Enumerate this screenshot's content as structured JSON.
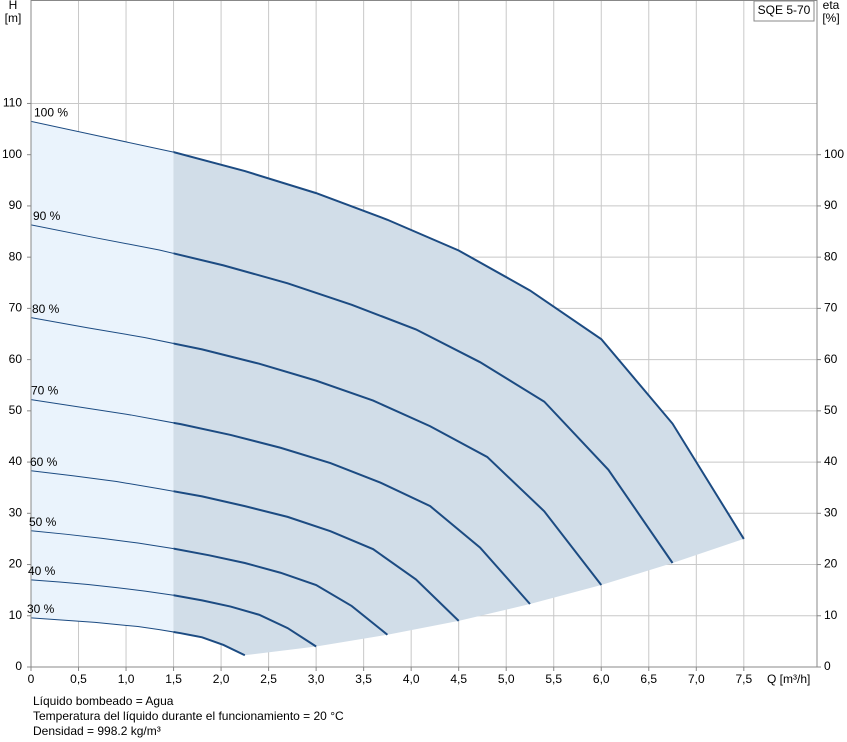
{
  "chart_data": {
    "type": "line",
    "title": "SQE 5-70",
    "xlabel": "Q [m³/h]",
    "ylabel": "H",
    "yunit": "[m]",
    "y2label": "eta",
    "y2unit": "[%]",
    "xlim": [
      0,
      8.27
    ],
    "ylim": [
      0,
      130
    ],
    "y2lim": [
      0,
      130
    ],
    "xticks": [
      0,
      {
        "value": 0.5,
        "label": "0,5"
      },
      {
        "value": 1.0,
        "label": "1,0"
      },
      {
        "value": 1.5,
        "label": "1,5"
      },
      {
        "value": 2.0,
        "label": "2,0"
      },
      {
        "value": 2.5,
        "label": "2,5"
      },
      {
        "value": 3.0,
        "label": "3,0"
      },
      {
        "value": 3.5,
        "label": "3,5"
      },
      {
        "value": 4.0,
        "label": "4,0"
      },
      {
        "value": 4.5,
        "label": "4,5"
      },
      {
        "value": 5.0,
        "label": "5,0"
      },
      {
        "value": 5.5,
        "label": "5,5"
      },
      {
        "value": 6.0,
        "label": "6,0"
      },
      {
        "value": 6.5,
        "label": "6,5"
      },
      {
        "value": 7.0,
        "label": "7,0"
      },
      {
        "value": 7.5,
        "label": "7,5"
      }
    ],
    "yticks": [
      0,
      10,
      20,
      30,
      40,
      50,
      60,
      70,
      80,
      90,
      100,
      110
    ],
    "y2ticks": [
      0,
      10,
      20,
      30,
      40,
      50,
      60,
      70,
      80,
      90,
      100
    ],
    "grid": true,
    "split_x": 1.5,
    "series": [
      {
        "name": "30 %",
        "color": "#1c4b82",
        "x": [
          0,
          0.225,
          0.45,
          0.675,
          0.9,
          1.125,
          1.35,
          1.575,
          1.8,
          2.025,
          2.25
        ],
        "values": [
          9.6,
          9.3,
          9.0,
          8.7,
          8.3,
          7.9,
          7.3,
          6.6,
          5.8,
          4.3,
          2.3
        ]
      },
      {
        "name": "40 %",
        "color": "#1c4b82",
        "x": [
          0,
          0.3,
          0.6,
          0.9,
          1.2,
          1.5,
          1.8,
          2.1,
          2.4,
          2.7,
          3.0
        ],
        "values": [
          17.0,
          16.6,
          16.1,
          15.5,
          14.8,
          14.0,
          13.0,
          11.8,
          10.2,
          7.6,
          4.0
        ]
      },
      {
        "name": "50 %",
        "color": "#1c4b82",
        "x": [
          0,
          0.375,
          0.75,
          1.125,
          1.5,
          1.875,
          2.25,
          2.625,
          3.0,
          3.375,
          3.75
        ],
        "values": [
          26.6,
          25.9,
          25.1,
          24.2,
          23.1,
          21.8,
          20.3,
          18.4,
          16.0,
          11.9,
          6.3
        ]
      },
      {
        "name": "60 %",
        "color": "#1c4b82",
        "x": [
          0,
          0.45,
          0.9,
          1.35,
          1.8,
          2.25,
          2.7,
          3.15,
          3.6,
          4.05,
          4.5
        ],
        "values": [
          38.3,
          37.3,
          36.2,
          34.8,
          33.3,
          31.4,
          29.3,
          26.5,
          23.0,
          17.1,
          9.0
        ]
      },
      {
        "name": "70 %",
        "color": "#1c4b82",
        "x": [
          0,
          0.525,
          1.05,
          1.575,
          2.1,
          2.625,
          3.15,
          3.675,
          4.2,
          4.725,
          5.25
        ],
        "values": [
          52.2,
          50.7,
          49.2,
          47.4,
          45.3,
          42.8,
          39.8,
          36.0,
          31.4,
          23.3,
          12.3
        ]
      },
      {
        "name": "80 %",
        "color": "#1c4b82",
        "x": [
          0,
          0.6,
          1.2,
          1.8,
          2.4,
          3.0,
          3.6,
          4.2,
          4.8,
          5.4,
          6.0
        ],
        "values": [
          68.2,
          66.2,
          64.3,
          62.0,
          59.2,
          55.9,
          52.0,
          47.0,
          41.0,
          30.4,
          16.0
        ]
      },
      {
        "name": "90 %",
        "color": "#1c4b82",
        "x": [
          0,
          0.675,
          1.35,
          2.025,
          2.7,
          3.375,
          4.05,
          4.725,
          5.4,
          6.075,
          6.75
        ],
        "values": [
          86.3,
          83.8,
          81.4,
          78.4,
          74.9,
          70.7,
          65.9,
          59.5,
          51.8,
          38.5,
          20.3
        ]
      },
      {
        "name": "100 %",
        "color": "#1c4b82",
        "x": [
          0,
          0.75,
          1.5,
          2.25,
          3.0,
          3.75,
          4.5,
          5.25,
          6.0,
          6.75,
          7.5
        ],
        "values": [
          106.5,
          103.5,
          100.5,
          96.8,
          92.5,
          87.3,
          81.3,
          73.5,
          64.0,
          47.5,
          25.0
        ]
      }
    ]
  },
  "notes": [
    "Líquido bombeado = Agua",
    "Temperatura del líquido durante el funcionamiento = 20 °C",
    "Densidad = 998.2 kg/m³"
  ]
}
